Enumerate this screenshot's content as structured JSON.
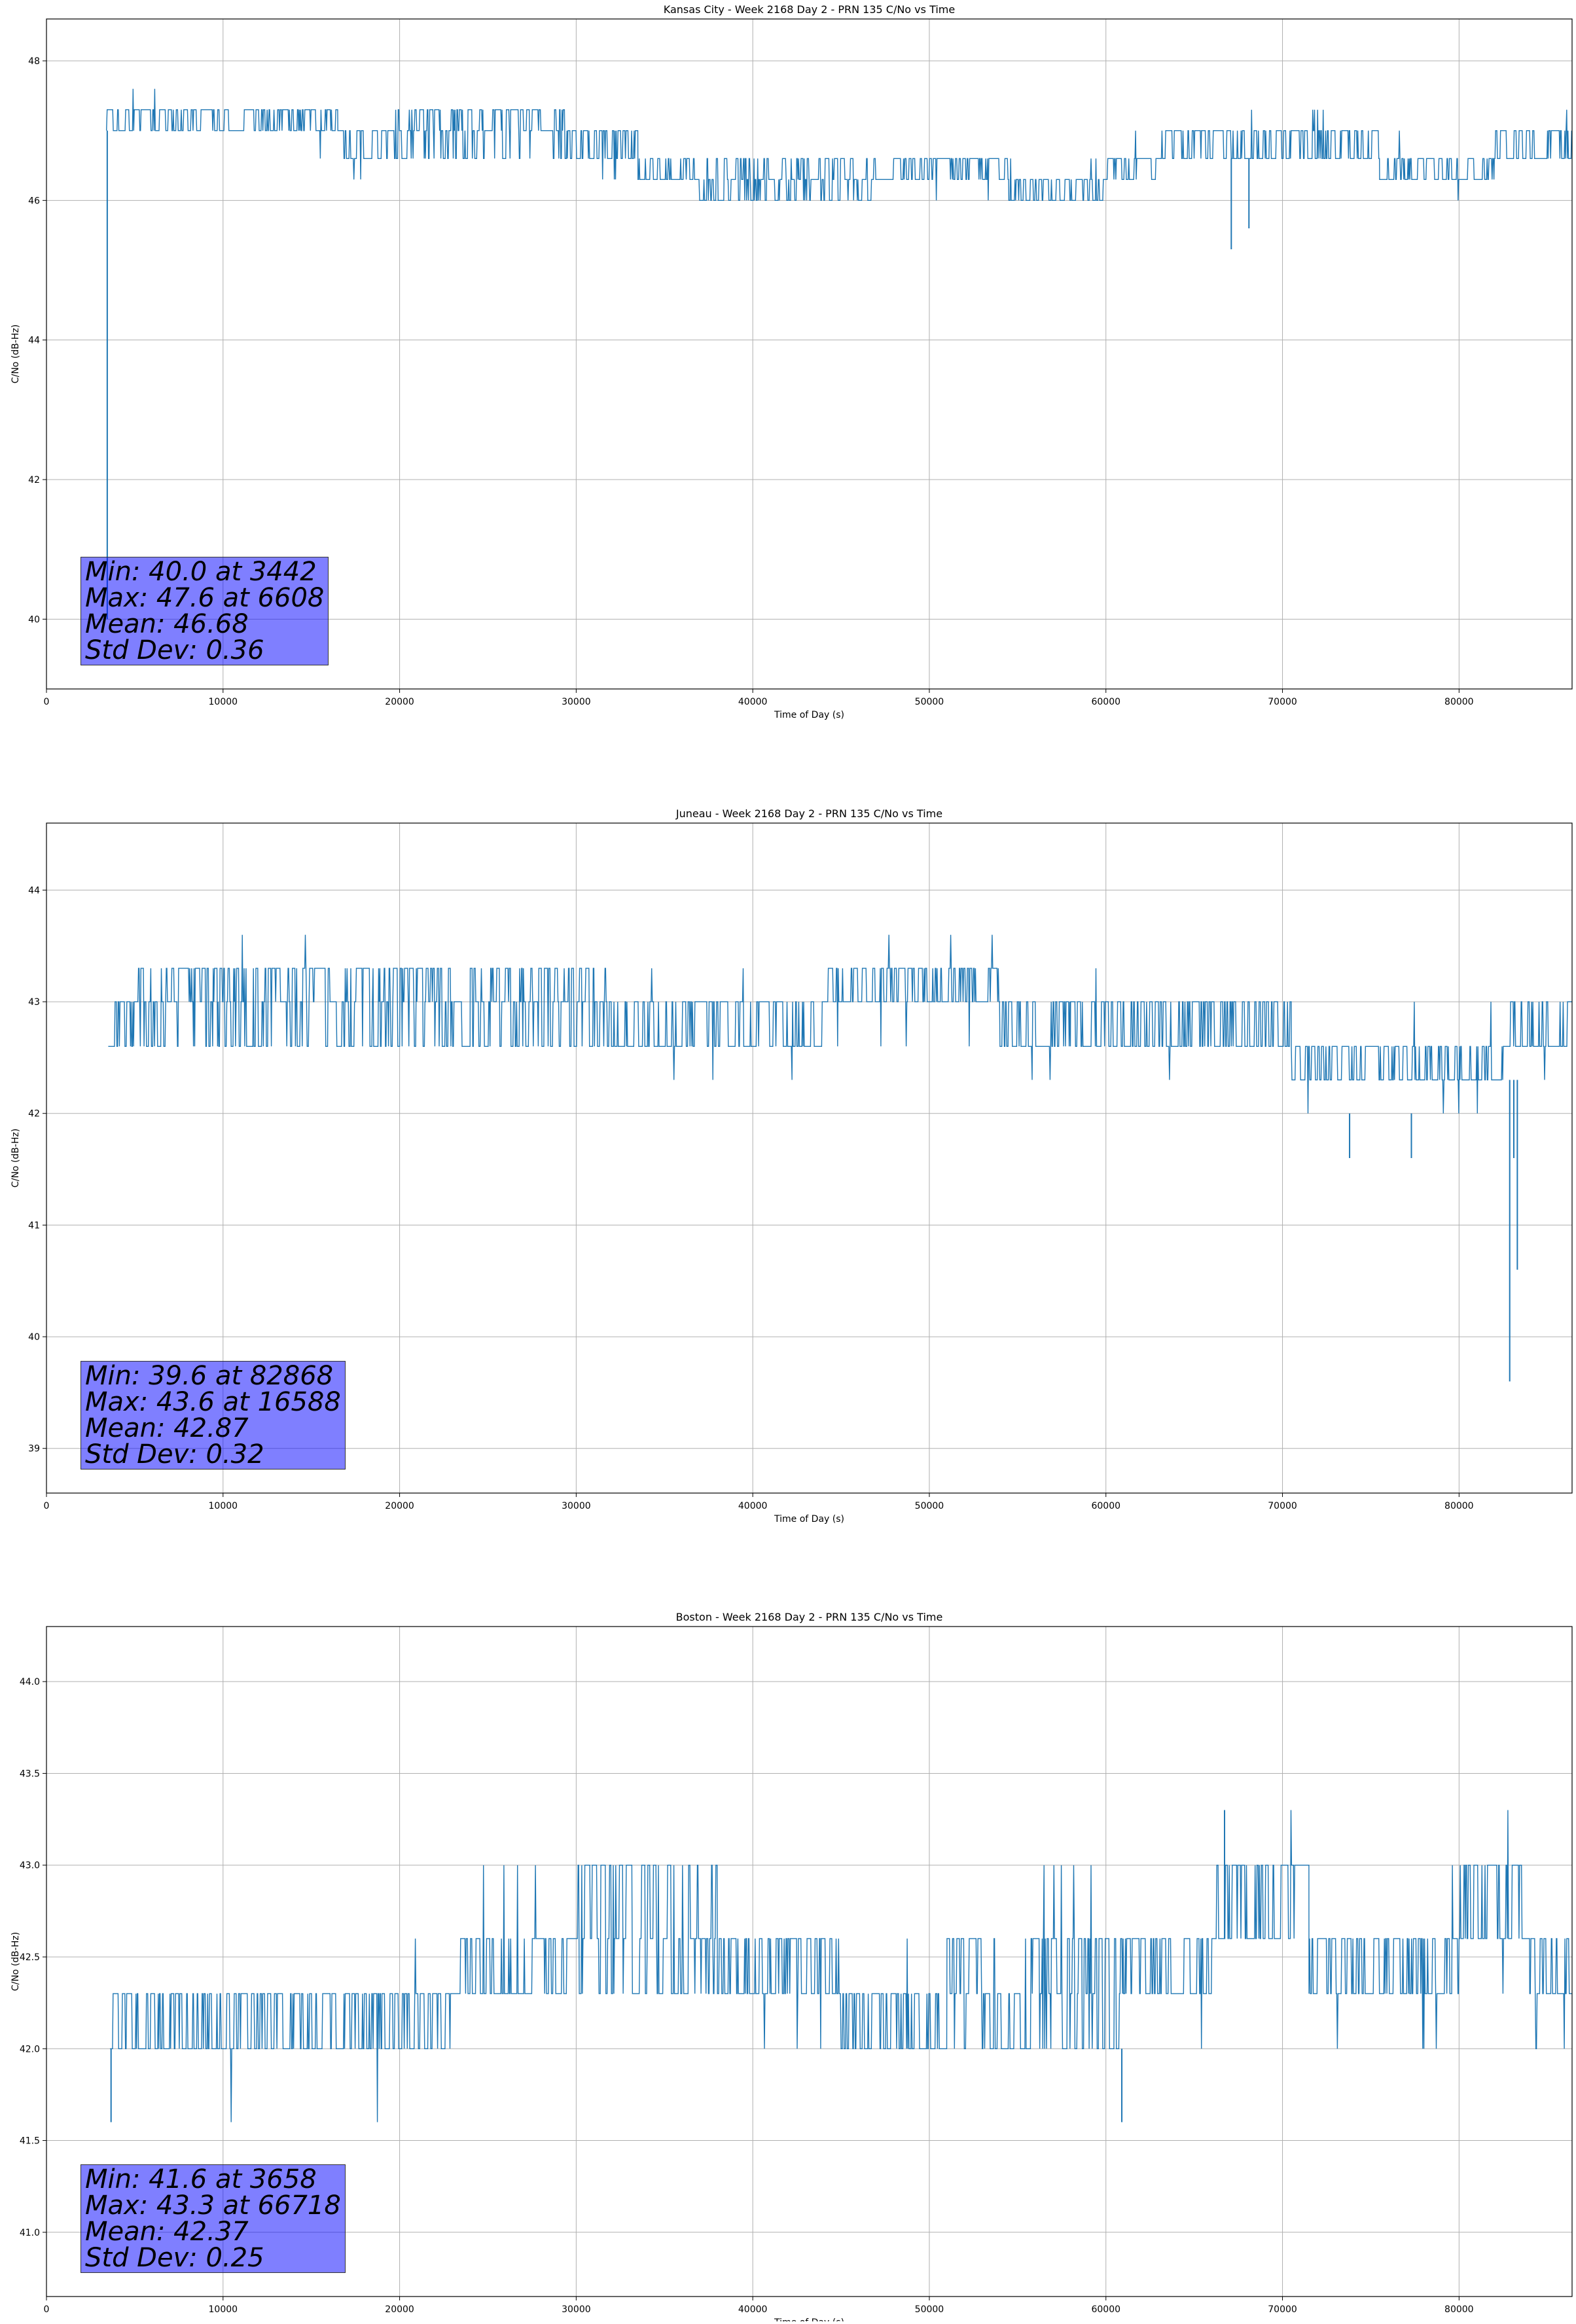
{
  "colors": {
    "line": "#1f77b4",
    "grid": "#b0b0b0",
    "stats_box": "#8080ff"
  },
  "chart_data": [
    {
      "type": "line",
      "title": "Kansas City - Week 2168 Day 2 - PRN 135 C/No vs Time",
      "xlabel": "Time of Day (s)",
      "ylabel": "C/No (dB-Hz)",
      "xlim": [
        0,
        86400
      ],
      "ylim": [
        39,
        48.6
      ],
      "xticks": [
        0,
        10000,
        20000,
        30000,
        40000,
        50000,
        60000,
        70000,
        80000
      ],
      "xtick_labels": [
        "0",
        "10000",
        "20000",
        "30000",
        "40000",
        "50000",
        "60000",
        "70000",
        "80000"
      ],
      "yticks": [
        40,
        42,
        44,
        46,
        48
      ],
      "ytick_labels": [
        "40",
        "42",
        "44",
        "46",
        "48"
      ],
      "grid": true,
      "series": [
        {
          "segments": [
            {
              "x0": 3400,
              "x1": 16500,
              "levels": [
                47.0,
                47.3
              ],
              "rare": [
                47.6,
                46.6
              ]
            },
            {
              "x0": 16500,
              "x1": 19500,
              "levels": [
                46.6,
                47.0
              ],
              "rare": [
                46.3
              ]
            },
            {
              "x0": 19500,
              "x1": 29500,
              "levels": [
                47.0,
                47.3,
                46.6
              ],
              "rare": []
            },
            {
              "x0": 29500,
              "x1": 33500,
              "levels": [
                46.6,
                47.0
              ],
              "rare": [
                46.3
              ]
            },
            {
              "x0": 33500,
              "x1": 36500,
              "levels": [
                46.3,
                46.6
              ],
              "rare": []
            },
            {
              "x0": 36500,
              "x1": 42000,
              "levels": [
                46.3,
                46.6,
                46.0
              ],
              "rare": []
            },
            {
              "x0": 42000,
              "x1": 47000,
              "levels": [
                46.0,
                46.3,
                46.6
              ],
              "rare": []
            },
            {
              "x0": 47000,
              "x1": 54500,
              "levels": [
                46.3,
                46.6
              ],
              "rare": [
                46.0
              ]
            },
            {
              "x0": 54500,
              "x1": 60000,
              "levels": [
                46.0,
                46.3
              ],
              "rare": [
                46.6
              ]
            },
            {
              "x0": 60000,
              "x1": 63000,
              "levels": [
                46.3,
                46.6
              ],
              "rare": [
                46.0,
                47.0
              ]
            },
            {
              "x0": 63000,
              "x1": 71500,
              "levels": [
                46.6,
                47.0
              ],
              "rare": [
                47.3
              ]
            },
            {
              "x0": 71500,
              "x1": 75500,
              "levels": [
                46.6,
                47.0
              ],
              "rare": [
                47.3
              ]
            },
            {
              "x0": 75500,
              "x1": 82000,
              "levels": [
                46.3,
                46.6
              ],
              "rare": [
                46.0,
                47.0
              ]
            },
            {
              "x0": 82000,
              "x1": 86400,
              "levels": [
                46.6,
                47.0
              ],
              "rare": [
                47.3
              ]
            }
          ],
          "spikes": [
            {
              "x": 3442,
              "y0": 47.0,
              "y1": 40.0
            },
            {
              "x": 67100,
              "y0": 46.6,
              "y1": 45.3
            },
            {
              "x": 68100,
              "y0": 46.6,
              "y1": 45.6
            }
          ]
        }
      ],
      "stats": [
        "Min: 40.0 at 3442",
        "Max: 47.6 at 6608",
        "Mean: 46.68",
        "Std Dev: 0.36"
      ]
    },
    {
      "type": "line",
      "title": "Juneau - Week 2168 Day 2 - PRN 135 C/No vs Time",
      "xlabel": "Time of Day (s)",
      "ylabel": "C/No (dB-Hz)",
      "xlim": [
        0,
        86400
      ],
      "ylim": [
        38.6,
        44.6
      ],
      "xticks": [
        0,
        10000,
        20000,
        30000,
        40000,
        50000,
        60000,
        70000,
        80000
      ],
      "xtick_labels": [
        "0",
        "10000",
        "20000",
        "30000",
        "40000",
        "50000",
        "60000",
        "70000",
        "80000"
      ],
      "yticks": [
        39,
        40,
        41,
        42,
        43,
        44
      ],
      "ytick_labels": [
        "39",
        "40",
        "41",
        "42",
        "43",
        "44"
      ],
      "grid": true,
      "series": [
        {
          "segments": [
            {
              "x0": 3500,
              "x1": 5000,
              "levels": [
                42.6,
                43.0
              ],
              "rare": []
            },
            {
              "x0": 5000,
              "x1": 16500,
              "levels": [
                43.0,
                43.3,
                42.6
              ],
              "rare": [
                43.6
              ]
            },
            {
              "x0": 16500,
              "x1": 24000,
              "levels": [
                42.6,
                43.0,
                43.3
              ],
              "rare": []
            },
            {
              "x0": 24000,
              "x1": 32000,
              "levels": [
                43.0,
                43.3,
                42.6
              ],
              "rare": []
            },
            {
              "x0": 32000,
              "x1": 44000,
              "levels": [
                42.6,
                43.0
              ],
              "rare": [
                43.3,
                42.3
              ]
            },
            {
              "x0": 44000,
              "x1": 54000,
              "levels": [
                43.0,
                43.3
              ],
              "rare": [
                43.6,
                42.6
              ]
            },
            {
              "x0": 54000,
              "x1": 58000,
              "levels": [
                42.6,
                43.0
              ],
              "rare": [
                42.3
              ]
            },
            {
              "x0": 58000,
              "x1": 70500,
              "levels": [
                42.6,
                43.0
              ],
              "rare": [
                43.3,
                42.3
              ]
            },
            {
              "x0": 70500,
              "x1": 82500,
              "levels": [
                42.3,
                42.6
              ],
              "rare": [
                42.0,
                43.0
              ]
            },
            {
              "x0": 82500,
              "x1": 86400,
              "levels": [
                42.6,
                43.0
              ],
              "rare": [
                42.3
              ]
            }
          ],
          "spikes": [
            {
              "x": 73800,
              "y0": 42.0,
              "y1": 41.6
            },
            {
              "x": 77300,
              "y0": 42.0,
              "y1": 41.6
            },
            {
              "x": 82868,
              "y0": 42.3,
              "y1": 39.6
            },
            {
              "x": 83100,
              "y0": 42.3,
              "y1": 41.6
            },
            {
              "x": 83300,
              "y0": 42.3,
              "y1": 40.6
            }
          ]
        }
      ],
      "stats": [
        "Min: 39.6 at 82868",
        "Max: 43.6 at 16588",
        "Mean: 42.87",
        "Std Dev: 0.32"
      ]
    },
    {
      "type": "line",
      "title": "Boston - Week 2168 Day 2 - PRN 135 C/No vs Time",
      "xlabel": "Time of Day (s)",
      "ylabel": "C/No (dB-Hz)",
      "xlim": [
        0,
        86400
      ],
      "ylim": [
        40.65,
        44.3
      ],
      "xticks": [
        0,
        10000,
        20000,
        30000,
        40000,
        50000,
        60000,
        70000,
        80000
      ],
      "xtick_labels": [
        "0",
        "10000",
        "20000",
        "30000",
        "40000",
        "50000",
        "60000",
        "70000",
        "80000"
      ],
      "yticks": [
        41.0,
        41.5,
        42.0,
        42.5,
        43.0,
        43.5,
        44.0
      ],
      "ytick_labels": [
        "41.0",
        "41.5",
        "42.0",
        "42.5",
        "43.0",
        "43.5",
        "44.0"
      ],
      "grid": true,
      "series": [
        {
          "segments": [
            {
              "x0": 3600,
              "x1": 16500,
              "levels": [
                42.0,
                42.3
              ],
              "rare": [
                42.6,
                41.6
              ]
            },
            {
              "x0": 16500,
              "x1": 19000,
              "levels": [
                42.0,
                42.3
              ],
              "rare": [
                41.6
              ]
            },
            {
              "x0": 19000,
              "x1": 23000,
              "levels": [
                42.0,
                42.3
              ],
              "rare": [
                42.6
              ]
            },
            {
              "x0": 23000,
              "x1": 30000,
              "levels": [
                42.3,
                42.6
              ],
              "rare": [
                43.0,
                42.0
              ]
            },
            {
              "x0": 30000,
              "x1": 38000,
              "levels": [
                42.6,
                43.0,
                42.3
              ],
              "rare": []
            },
            {
              "x0": 38000,
              "x1": 45000,
              "levels": [
                42.3,
                42.6
              ],
              "rare": [
                42.0
              ]
            },
            {
              "x0": 45000,
              "x1": 51000,
              "levels": [
                42.0,
                42.3
              ],
              "rare": [
                41.6,
                42.6
              ]
            },
            {
              "x0": 51000,
              "x1": 61000,
              "levels": [
                42.0,
                42.3,
                42.6
              ],
              "rare": [
                43.0
              ]
            },
            {
              "x0": 61000,
              "x1": 66000,
              "levels": [
                42.3,
                42.6
              ],
              "rare": [
                43.0,
                42.0
              ]
            },
            {
              "x0": 66000,
              "x1": 71500,
              "levels": [
                42.6,
                43.0
              ],
              "rare": [
                43.3
              ]
            },
            {
              "x0": 71500,
              "x1": 80000,
              "levels": [
                42.3,
                42.6
              ],
              "rare": [
                42.0,
                43.0
              ]
            },
            {
              "x0": 80000,
              "x1": 84000,
              "levels": [
                42.6,
                43.0
              ],
              "rare": [
                43.3,
                42.3
              ]
            },
            {
              "x0": 84000,
              "x1": 86400,
              "levels": [
                42.3,
                42.6
              ],
              "rare": [
                42.0
              ]
            }
          ],
          "spikes": [
            {
              "x": 3658,
              "y0": 42.0,
              "y1": 41.6
            },
            {
              "x": 66718,
              "y0": 42.6,
              "y1": 43.3
            },
            {
              "x": 60900,
              "y0": 42.0,
              "y1": 41.6
            }
          ]
        }
      ],
      "stats": [
        "Min: 41.6 at 3658",
        "Max: 43.3 at 66718",
        "Mean: 42.37",
        "Std Dev: 0.25"
      ]
    }
  ]
}
